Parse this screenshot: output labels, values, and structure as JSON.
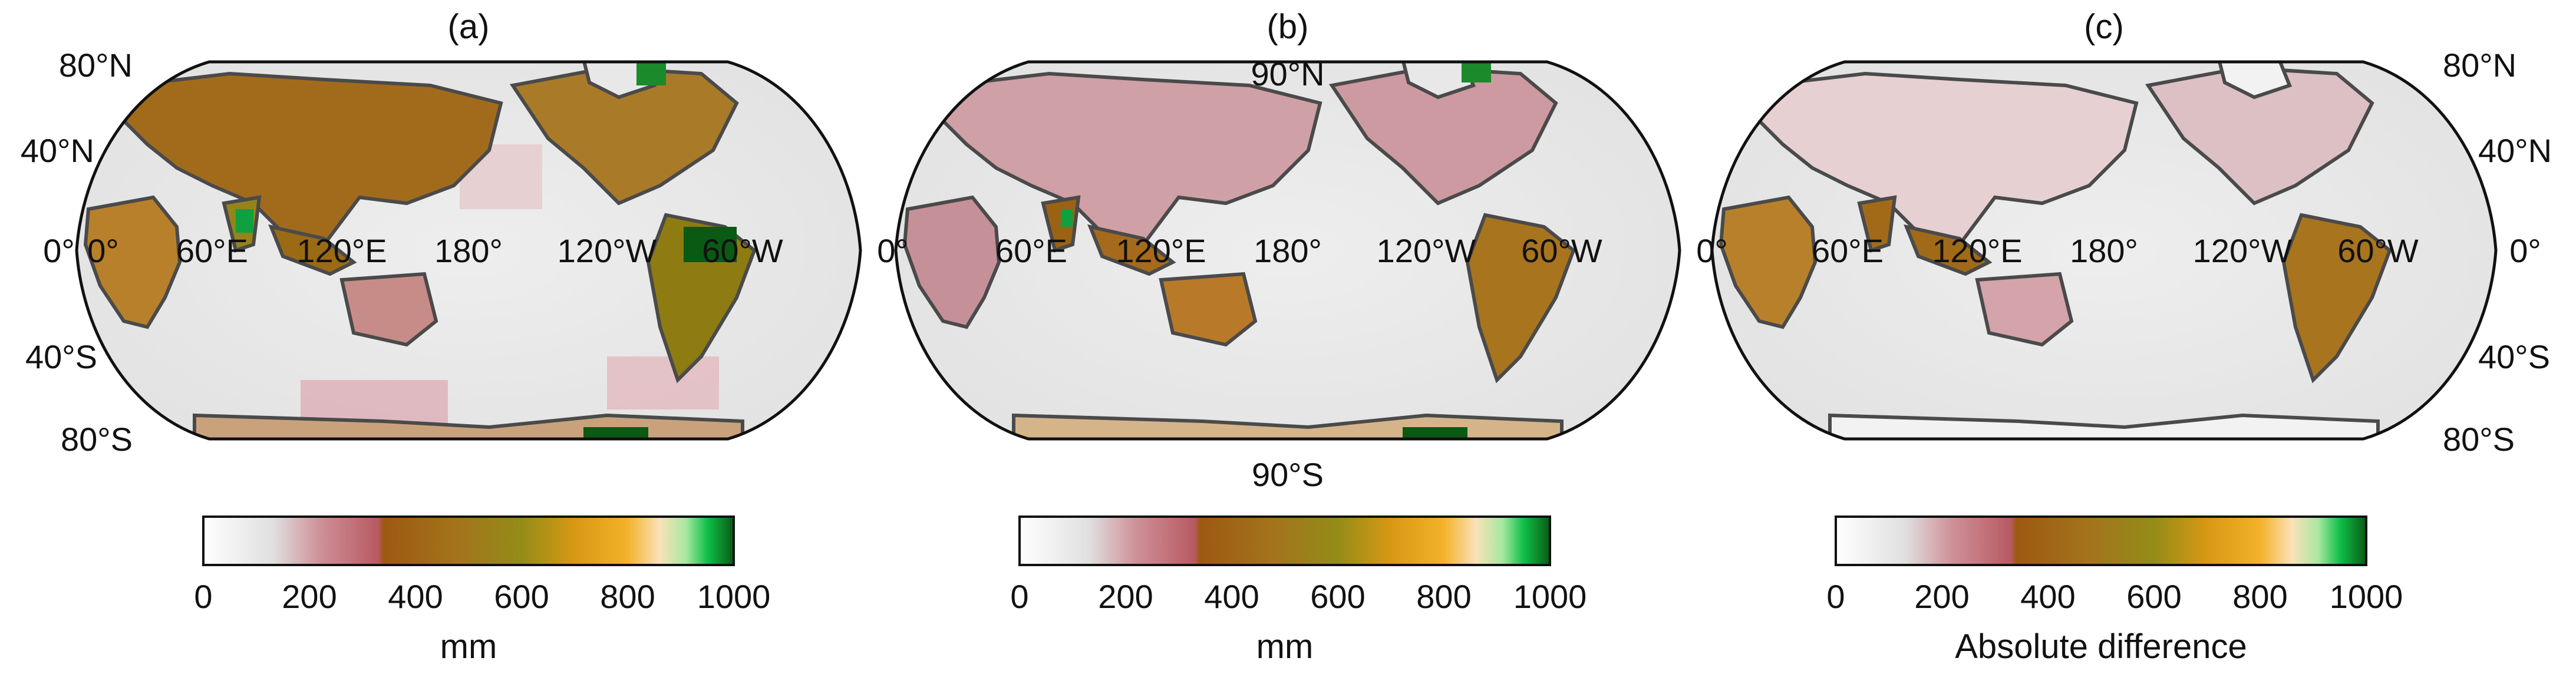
{
  "colormap": [
    "#ffffff",
    "#e0e0e0",
    "#cf9098",
    "#b85a62",
    "#9c5a10",
    "#a4741c",
    "#948c18",
    "#d89814",
    "#f3b22a",
    "#fbe1b8",
    "#a8e8a0",
    "#10c04a",
    "#0a5a14"
  ],
  "colors": {
    "land_outline": "#4a4a4a",
    "frame": "#111111",
    "background_sea": "#e8e8e8"
  },
  "panels": [
    {
      "label": "(a)",
      "lat_labels": {
        "left_n80": "80°N",
        "left_n40": "40°N",
        "left_eq": "0°",
        "left_s40": "40°S",
        "left_s80": "80°S"
      },
      "lon_labels": [
        "0°",
        "60°E",
        "120°E",
        "180°",
        "120°W",
        "60°W"
      ],
      "colorbar": {
        "ticks": [
          "0",
          "200",
          "400",
          "600",
          "800",
          "1000"
        ],
        "title": "mm",
        "min": 0,
        "max": 1000
      }
    },
    {
      "label": "(b)",
      "lat_labels": {
        "top": "90°N",
        "bottom": "90°S"
      },
      "lon_labels": [
        "0°",
        "60°E",
        "120°E",
        "180°",
        "120°W",
        "60°W"
      ],
      "colorbar": {
        "ticks": [
          "0",
          "200",
          "400",
          "600",
          "800",
          "1000"
        ],
        "title": "mm",
        "min": 0,
        "max": 1000
      }
    },
    {
      "label": "(c)",
      "lat_labels": {
        "right_n80": "80°N",
        "right_n40": "40°N",
        "right_eq": "0°",
        "right_s40": "40°S",
        "right_s80": "80°S"
      },
      "lon_labels": [
        "0°",
        "60°E",
        "120°E",
        "180°",
        "120°W",
        "60°W"
      ],
      "colorbar": {
        "ticks": [
          "0",
          "200",
          "400",
          "600",
          "800",
          "1000"
        ],
        "title": "Absolute difference",
        "min": 0,
        "max": 1000
      }
    }
  ]
}
